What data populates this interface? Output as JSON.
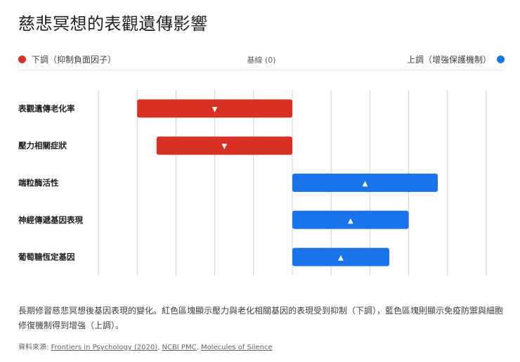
{
  "title": "慈悲冥想的表觀遺傳影響",
  "legend": {
    "down_label": "下調（抑制負面因子）",
    "baseline_label": "基線 (0)",
    "up_label": "上調（增強保護機制）",
    "down_color": "#d93025",
    "up_color": "#1a73e8"
  },
  "chart_data": {
    "type": "bar",
    "orientation": "horizontal",
    "categories": [
      "表觀遺傳老化率",
      "壓力相關症狀",
      "端粒酶活性",
      "神經傳遞基因表現",
      "葡萄糖恆定基因"
    ],
    "values": [
      -4,
      -3.5,
      3.75,
      3,
      2.5
    ],
    "direction_markers": [
      "▼",
      "▼",
      "▲",
      "▲",
      "▲"
    ],
    "xlim": [
      -5,
      5
    ],
    "baseline": 0,
    "grid": "vertical",
    "legend_position": "top"
  },
  "caption": "長期修習慈悲冥想後基因表現的變化。紅色區塊顯示壓力與老化相關基因的表現受到抑制（下調），藍色區塊則顯示免疫防禦與細胞修復機制得到增強（上調）。",
  "source": {
    "prefix": "資料來源: ",
    "links": [
      "Frontiers in Psychology (2020)",
      "NCBI PMC",
      "Molecules of Silence"
    ],
    "separator": ", "
  }
}
